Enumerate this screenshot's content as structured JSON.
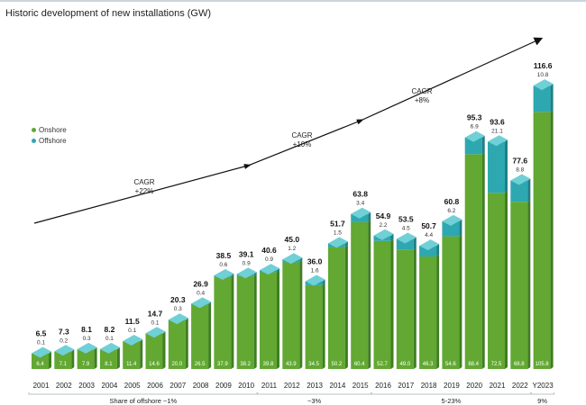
{
  "title": "Historic development of new installations (GW)",
  "legend": [
    {
      "label": "Onshore",
      "color": "#62a832"
    },
    {
      "label": "Offshore",
      "color": "#2ea8b0"
    }
  ],
  "chart_data": {
    "type": "bar",
    "stacked": true,
    "title": "Historic development of new installations (GW)",
    "categories": [
      "2001",
      "2002",
      "2003",
      "2004",
      "2005",
      "2006",
      "2007",
      "2008",
      "2009",
      "2010",
      "2011",
      "2012",
      "2013",
      "2014",
      "2015",
      "2016",
      "2017",
      "2018",
      "2019",
      "2020",
      "2021",
      "2022",
      "Y2023"
    ],
    "totals": [
      "6.5",
      "7.3",
      "8.1",
      "8.2",
      "11.5",
      "14.7",
      "20.3",
      "26.9",
      "38.5",
      "39.1",
      "40.6",
      "45.0",
      "36.0",
      "51.7",
      "63.8",
      "54.9",
      "53.5",
      "50.7",
      "60.8",
      "95.3",
      "93.6",
      "77.6",
      "116.6"
    ],
    "series": [
      {
        "name": "Onshore",
        "color": "#62a832",
        "values": [
          6.4,
          7.1,
          7.9,
          8.1,
          11.4,
          14.6,
          20.0,
          26.5,
          37.9,
          38.2,
          39.8,
          43.9,
          34.5,
          50.2,
          60.4,
          52.7,
          49.0,
          46.3,
          54.6,
          88.4,
          72.5,
          68.8,
          105.8
        ],
        "labels": [
          "6.4",
          "7.1",
          "7.9",
          "8.1",
          "11.4",
          "14.6",
          "20.0",
          "26.5",
          "37.9",
          "38.2",
          "39.8",
          "43.9",
          "34.5",
          "50.2",
          "60.4",
          "52.7",
          "49.0",
          "46.3",
          "54.6",
          "88.4",
          "72.5",
          "68.8",
          "105.8"
        ]
      },
      {
        "name": "Offshore",
        "color": "#2ea8b0",
        "values": [
          0.1,
          0.2,
          0.3,
          0.1,
          0.1,
          0.1,
          0.3,
          0.4,
          0.6,
          0.9,
          0.9,
          1.2,
          1.6,
          1.5,
          3.4,
          2.2,
          4.5,
          4.4,
          6.2,
          6.9,
          21.1,
          8.8,
          10.8
        ],
        "labels": [
          "0.1",
          "0.2",
          "0.3",
          "0.1",
          "0.1",
          "0.1",
          "0.3",
          "0.4",
          "0.6",
          "0.9",
          "0.9",
          "1.2",
          "1.6",
          "1.5",
          "3.4",
          "2.2",
          "4.5",
          "4.4",
          "6.2",
          "6.9",
          "21.1",
          "8.8",
          "10.8"
        ]
      }
    ],
    "ylim": [
      0,
      125
    ],
    "cagr_labels": [
      {
        "line1": "CAGR",
        "line2": "+22%"
      },
      {
        "line1": "CAGR",
        "line2": "+10%"
      },
      {
        "line1": "CAGR",
        "line2": "+8%"
      }
    ],
    "offshore_share_groups": [
      {
        "label": "Share of offshore ~1%",
        "from": 0,
        "to": 9
      },
      {
        "label": "~3%",
        "from": 10,
        "to": 14
      },
      {
        "label": "5-23%",
        "from": 15,
        "to": 21
      },
      {
        "label": "9%",
        "from": 22,
        "to": 22
      }
    ]
  }
}
